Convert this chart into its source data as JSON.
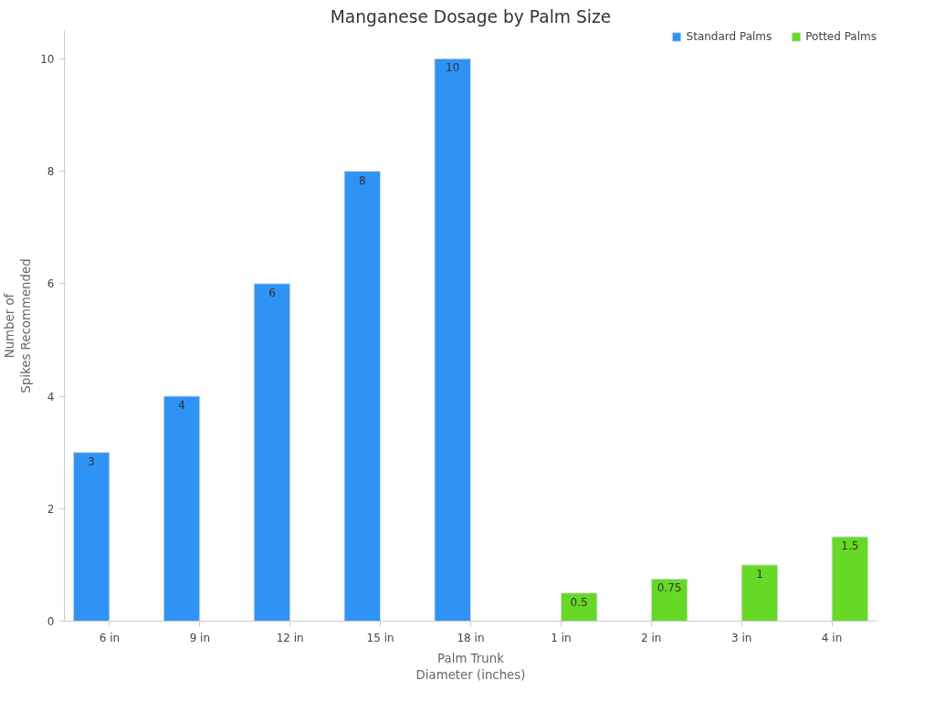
{
  "chart_data": {
    "type": "bar",
    "title": "Manganese Dosage by Palm Size",
    "xlabel": "Palm Trunk\nDiameter (inches)",
    "ylabel": "Number of\nSpikes Recommended",
    "categories": [
      "6 in",
      "9 in",
      "12 in",
      "15 in",
      "18 in",
      "1 in",
      "2 in",
      "3 in",
      "4 in"
    ],
    "series": [
      {
        "name": "Standard Palms",
        "color": "#2e93f5",
        "values": [
          3,
          4,
          6,
          8,
          10,
          null,
          null,
          null,
          null
        ]
      },
      {
        "name": "Potted Palms",
        "color": "#66d926",
        "values": [
          null,
          null,
          null,
          null,
          null,
          0.5,
          0.75,
          1,
          1.5
        ]
      }
    ],
    "ylim": [
      0,
      10.5
    ],
    "yticks": [
      0,
      2,
      4,
      6,
      8,
      10
    ],
    "data_labels": true,
    "grid": false,
    "legend": "top right"
  }
}
